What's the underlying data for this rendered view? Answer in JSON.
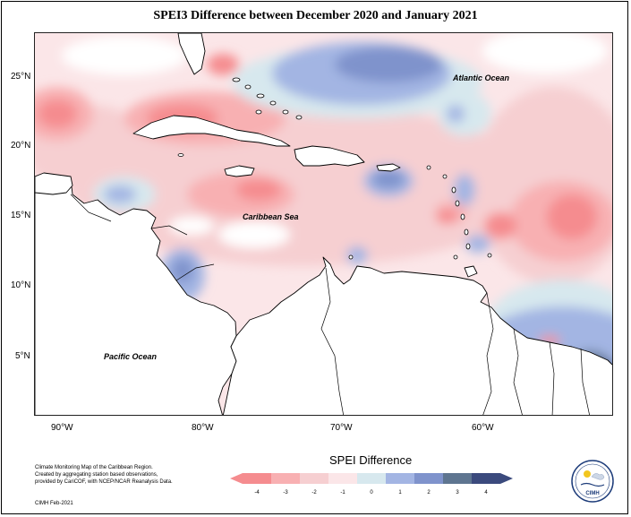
{
  "title": "SPEI3 Difference between December 2020 and January 2021",
  "map": {
    "lat_labels": [
      "25°N",
      "20°N",
      "15°N",
      "10°N",
      "5°N"
    ],
    "lon_labels": [
      "90°W",
      "80°W",
      "70°W",
      "60°W"
    ],
    "ocean_labels": {
      "atlantic": "Atlantic Ocean",
      "caribbean": "Caribbean Sea",
      "pacific": "Pacific Ocean"
    }
  },
  "legend": {
    "title": "SPEI Difference",
    "ticks": [
      "-4",
      "-3",
      "-2",
      "-1",
      "0",
      "1",
      "2",
      "3",
      "4"
    ],
    "colors": [
      "#f58c8f",
      "#f8b0b2",
      "#f6cfd1",
      "#fbe6e8",
      "#d7e8ee",
      "#a3b5e3",
      "#7f93cc",
      "#5e7590",
      "#3b4a7d"
    ]
  },
  "credits": {
    "line1": "Climate Monitoring Map of the Caribbean Region.",
    "line2": "Created by aggregating station based observations,",
    "line3": "provided by CariCOF, with NCEP/NCAR Reanalysis Data.",
    "footer": "CIMH Feb-2021"
  },
  "logo": {
    "text": "CIMH"
  },
  "colors": {
    "land": "#ffffff",
    "coast": "#000000"
  }
}
